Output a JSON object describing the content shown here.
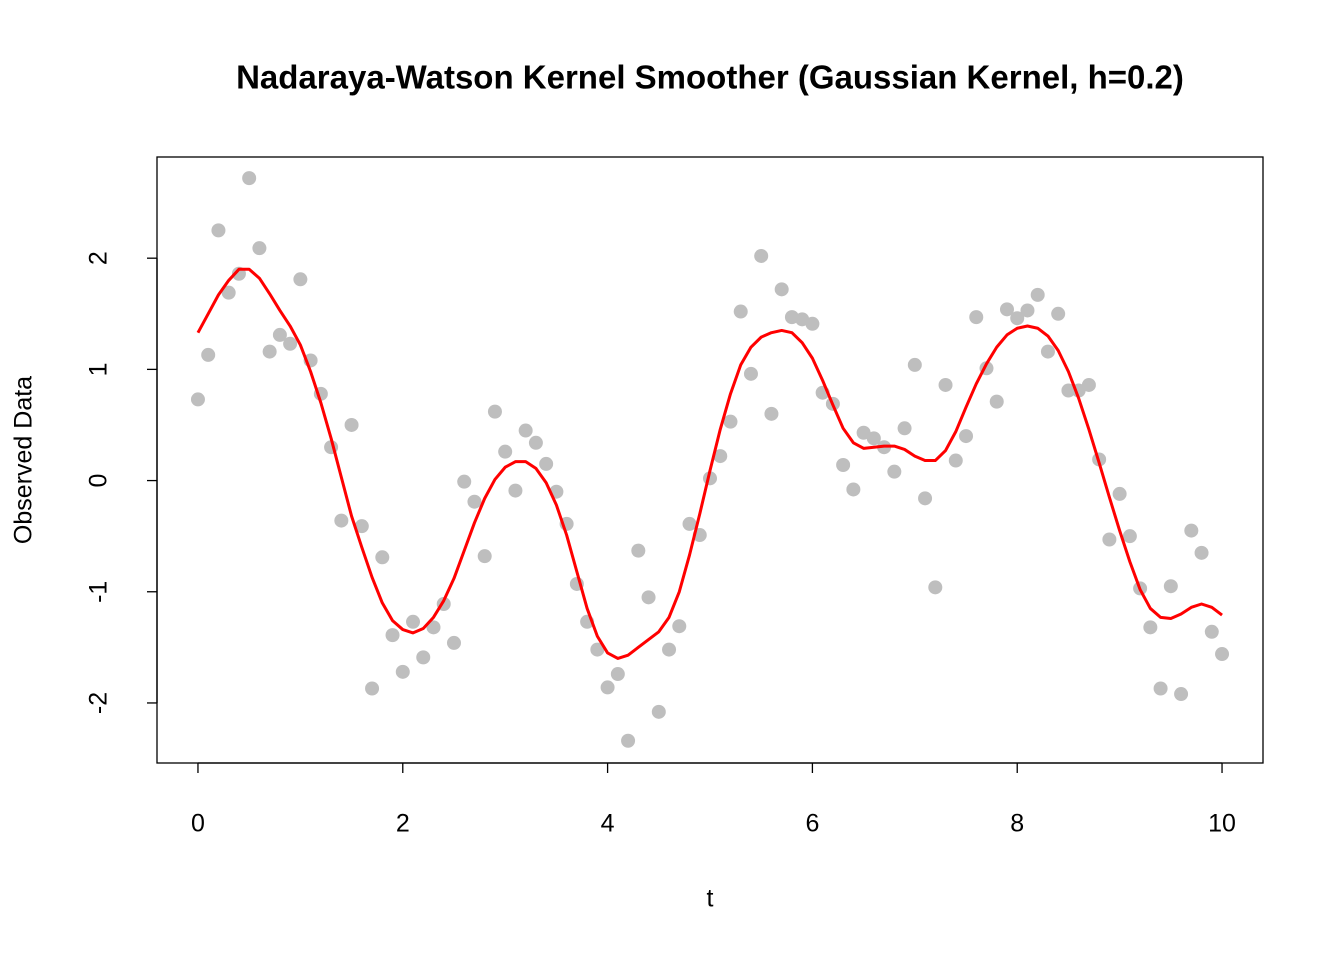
{
  "chart_data": {
    "type": "scatter",
    "title": "Nadaraya-Watson Kernel Smoother (Gaussian Kernel, h=0.2)",
    "xlabel": "t",
    "ylabel": "Observed Data",
    "x": [
      0,
      0.1,
      0.2,
      0.3,
      0.4,
      0.5,
      0.6,
      0.7,
      0.8,
      0.9,
      1,
      1.1,
      1.2,
      1.3,
      1.4,
      1.5,
      1.6,
      1.7,
      1.8,
      1.9,
      2,
      2.1,
      2.2,
      2.3,
      2.4,
      2.5,
      2.6,
      2.7,
      2.8,
      2.9,
      3,
      3.1,
      3.2,
      3.3,
      3.4,
      3.5,
      3.6,
      3.7,
      3.8,
      3.9,
      4,
      4.1,
      4.2,
      4.3,
      4.4,
      4.5,
      4.6,
      4.7,
      4.8,
      4.9,
      5,
      5.1,
      5.2,
      5.3,
      5.4,
      5.5,
      5.6,
      5.7,
      5.8,
      5.9,
      6,
      6.1,
      6.2,
      6.3,
      6.4,
      6.5,
      6.6,
      6.7,
      6.8,
      6.9,
      7,
      7.1,
      7.2,
      7.3,
      7.4,
      7.5,
      7.6,
      7.7,
      7.8,
      7.9,
      8,
      8.1,
      8.2,
      8.3,
      8.4,
      8.5,
      8.6,
      8.7,
      8.8,
      8.9,
      9,
      9.1,
      9.2,
      9.3,
      9.4,
      9.5,
      9.6,
      9.7,
      9.8,
      9.9,
      10
    ],
    "series": [
      {
        "type": "points",
        "color": "#bebebe",
        "values": [
          0.73,
          1.13,
          2.25,
          1.69,
          1.86,
          2.72,
          2.09,
          1.16,
          1.31,
          1.23,
          1.81,
          1.08,
          0.78,
          0.3,
          -0.36,
          0.5,
          -0.41,
          -1.87,
          -0.69,
          -1.39,
          -1.72,
          -1.27,
          -1.59,
          -1.32,
          -1.11,
          -1.46,
          -0.01,
          -0.19,
          -0.68,
          0.62,
          0.26,
          -0.09,
          0.45,
          0.34,
          0.15,
          -0.1,
          -0.39,
          -0.93,
          -1.27,
          -1.52,
          -1.86,
          -1.74,
          -2.34,
          -0.63,
          -1.05,
          -2.08,
          -1.52,
          -1.31,
          -0.39,
          -0.49,
          0.02,
          0.22,
          0.53,
          1.52,
          0.96,
          2.02,
          0.6,
          1.72,
          1.47,
          1.45,
          1.41,
          0.79,
          0.69,
          0.14,
          -0.08,
          0.43,
          0.38,
          0.3,
          0.08,
          0.47,
          1.04,
          -0.16,
          -0.96,
          0.86,
          0.18,
          0.4,
          1.47,
          1.01,
          0.71,
          1.54,
          1.46,
          1.53,
          1.67,
          1.16,
          1.5,
          0.81,
          0.81,
          0.86,
          0.19,
          -0.53,
          -0.12,
          -0.5,
          -0.97,
          -1.32,
          -1.87,
          -0.95,
          -1.92,
          -0.45,
          -0.65,
          -1.36,
          -1.56
        ]
      },
      {
        "type": "line",
        "color": "#ff0000",
        "values": [
          1.33,
          1.5,
          1.67,
          1.8,
          1.9,
          1.9,
          1.82,
          1.68,
          1.53,
          1.39,
          1.22,
          0.98,
          0.7,
          0.38,
          0.03,
          -0.32,
          -0.6,
          -0.87,
          -1.1,
          -1.26,
          -1.34,
          -1.37,
          -1.33,
          -1.23,
          -1.08,
          -0.88,
          -0.63,
          -0.38,
          -0.16,
          0.01,
          0.12,
          0.17,
          0.17,
          0.11,
          -0.02,
          -0.22,
          -0.49,
          -0.82,
          -1.15,
          -1.4,
          -1.55,
          -1.6,
          -1.57,
          -1.5,
          -1.43,
          -1.36,
          -1.23,
          -1.0,
          -0.67,
          -0.3,
          0.09,
          0.46,
          0.78,
          1.04,
          1.2,
          1.29,
          1.33,
          1.35,
          1.33,
          1.24,
          1.1,
          0.9,
          0.68,
          0.47,
          0.34,
          0.29,
          0.3,
          0.31,
          0.31,
          0.28,
          0.22,
          0.18,
          0.18,
          0.27,
          0.44,
          0.66,
          0.87,
          1.05,
          1.2,
          1.31,
          1.37,
          1.39,
          1.37,
          1.3,
          1.17,
          0.98,
          0.74,
          0.46,
          0.16,
          -0.15,
          -0.45,
          -0.73,
          -0.98,
          -1.15,
          -1.23,
          -1.24,
          -1.2,
          -1.14,
          -1.11,
          -1.14,
          -1.21
        ]
      }
    ],
    "xlim": [
      -0.4,
      10.4
    ],
    "ylim": [
      -2.54,
      2.91
    ],
    "xticks": [
      0,
      2,
      4,
      6,
      8,
      10
    ],
    "yticks": [
      -2,
      -1,
      0,
      1,
      2
    ]
  }
}
